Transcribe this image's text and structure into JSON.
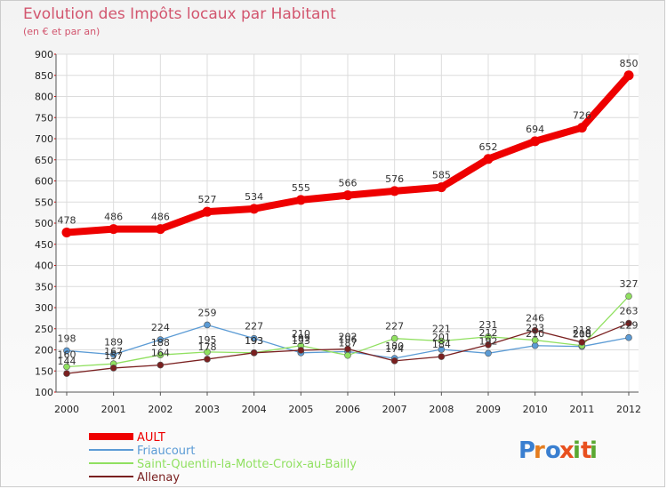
{
  "chart_data": {
    "type": "line",
    "title": "Evolution des Impôts locaux par Habitant",
    "subtitle": "(en € et par an)",
    "xlabel": "",
    "ylabel": "",
    "x": [
      2000,
      2001,
      2002,
      2003,
      2004,
      2005,
      2006,
      2007,
      2008,
      2009,
      2010,
      2011,
      2012
    ],
    "ylim": [
      100,
      900
    ],
    "yticks": [
      100,
      150,
      200,
      250,
      300,
      350,
      400,
      450,
      500,
      550,
      600,
      650,
      700,
      750,
      800,
      850,
      900
    ],
    "grid": true,
    "legend_position": "bottom-left",
    "series": [
      {
        "name": "AULT",
        "color": "#ee0000",
        "values": [
          478,
          486,
          486,
          527,
          534,
          555,
          566,
          576,
          585,
          652,
          694,
          726,
          850
        ]
      },
      {
        "name": "Friaucourt",
        "color": "#5b9bd5",
        "values": [
          198,
          189,
          224,
          259,
          227,
          193,
          196,
          180,
          201,
          192,
          210,
          208,
          229
        ]
      },
      {
        "name": "Saint-Quentin-la-Motte-Croix-au-Bailly",
        "color": "#90e060",
        "values": [
          160,
          167,
          188,
          195,
          193,
          210,
          187,
          227,
          221,
          231,
          223,
          210,
          327
        ]
      },
      {
        "name": "Allenay",
        "color": "#7a2020",
        "values": [
          144,
          157,
          164,
          178,
          193,
          199,
          202,
          174,
          184,
          212,
          246,
          218,
          263
        ]
      }
    ]
  },
  "logo": {
    "text": "Proxiti"
  }
}
